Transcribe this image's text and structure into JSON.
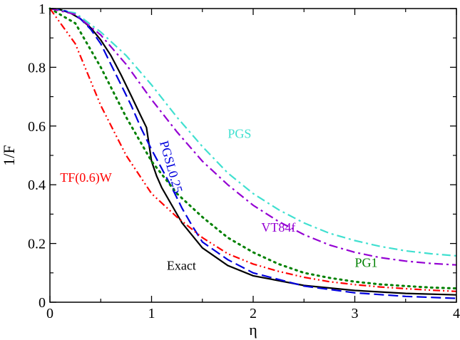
{
  "chart_data": {
    "type": "line",
    "xlabel": "η",
    "ylabel": "1/F",
    "xlim": [
      0,
      4
    ],
    "ylim": [
      0,
      1
    ],
    "x_ticks": [
      "0",
      "1",
      "2",
      "3",
      "4"
    ],
    "y_ticks": [
      "0",
      "0.2",
      "0.4",
      "0.6",
      "0.8",
      "1"
    ],
    "grid": false,
    "legend": "inline labels",
    "series": [
      {
        "name": "Exact",
        "color": "#000000",
        "dash": "solid",
        "x": [
          0,
          0.1,
          0.2,
          0.3,
          0.4,
          0.5,
          0.6,
          0.7,
          0.8,
          0.9,
          0.95,
          1.0,
          1.05,
          1.1,
          1.2,
          1.3,
          1.5,
          1.75,
          2.0,
          2.5,
          3.0,
          3.5,
          4.0
        ],
        "y": [
          1.0,
          0.996,
          0.985,
          0.965,
          0.935,
          0.893,
          0.84,
          0.774,
          0.703,
          0.63,
          0.595,
          0.48,
          0.43,
          0.39,
          0.33,
          0.27,
          0.185,
          0.125,
          0.09,
          0.057,
          0.04,
          0.03,
          0.025
        ]
      },
      {
        "name": "PGSL0.25",
        "color": "#0000dd",
        "dash": "long-dash",
        "x": [
          0,
          0.1,
          0.2,
          0.3,
          0.4,
          0.5,
          0.6,
          0.7,
          0.8,
          0.9,
          1.0,
          1.1,
          1.2,
          1.3,
          1.4,
          1.5,
          1.75,
          2.0,
          2.5,
          3.0,
          3.5,
          4.0
        ],
        "y": [
          1.0,
          0.997,
          0.987,
          0.965,
          0.93,
          0.88,
          0.81,
          0.74,
          0.67,
          0.59,
          0.52,
          0.455,
          0.39,
          0.32,
          0.26,
          0.205,
          0.145,
          0.1,
          0.055,
          0.032,
          0.02,
          0.013
        ]
      },
      {
        "name": "PGS",
        "color": "#40e0d0",
        "dash": "dash-dot",
        "x": [
          0,
          0.25,
          0.5,
          0.75,
          1.0,
          1.25,
          1.5,
          1.75,
          2.0,
          2.25,
          2.5,
          2.75,
          3.0,
          3.25,
          3.5,
          3.75,
          4.0
        ],
        "y": [
          1.0,
          0.985,
          0.92,
          0.84,
          0.74,
          0.63,
          0.53,
          0.44,
          0.37,
          0.315,
          0.27,
          0.235,
          0.21,
          0.19,
          0.175,
          0.165,
          0.158
        ]
      },
      {
        "name": "VT84f",
        "color": "#9400d3",
        "dash": "dash-dot",
        "x": [
          0,
          0.25,
          0.5,
          0.75,
          1.0,
          1.25,
          1.5,
          1.75,
          2.0,
          2.25,
          2.5,
          2.75,
          3.0,
          3.25,
          3.5,
          3.75,
          4.0
        ],
        "y": [
          1.0,
          0.98,
          0.91,
          0.81,
          0.69,
          0.58,
          0.48,
          0.4,
          0.33,
          0.275,
          0.23,
          0.195,
          0.17,
          0.152,
          0.14,
          0.132,
          0.127
        ]
      },
      {
        "name": "PG1",
        "color": "#008000",
        "dash": "dotted",
        "x": [
          0,
          0.25,
          0.5,
          0.75,
          1.0,
          1.25,
          1.5,
          1.75,
          2.0,
          2.25,
          2.5,
          2.75,
          3.0,
          3.25,
          3.5,
          3.75,
          4.0
        ],
        "y": [
          1.0,
          0.95,
          0.8,
          0.63,
          0.48,
          0.37,
          0.29,
          0.22,
          0.17,
          0.13,
          0.1,
          0.083,
          0.07,
          0.061,
          0.055,
          0.05,
          0.047
        ]
      },
      {
        "name": "TF(0.6)W",
        "color": "#ff0000",
        "dash": "dash-dot-dot",
        "x": [
          0,
          0.25,
          0.5,
          0.75,
          1.0,
          1.25,
          1.5,
          1.75,
          2.0,
          2.25,
          2.5,
          2.75,
          3.0,
          3.25,
          3.5,
          3.75,
          4.0
        ],
        "y": [
          1.0,
          0.88,
          0.67,
          0.5,
          0.37,
          0.29,
          0.22,
          0.165,
          0.13,
          0.105,
          0.085,
          0.07,
          0.06,
          0.052,
          0.046,
          0.041,
          0.037
        ]
      }
    ],
    "annotations": [
      {
        "text": "PGS",
        "x": 1.75,
        "y": 0.56,
        "color": "#40e0d0",
        "rotate": 0
      },
      {
        "text": "PGSL0.25",
        "x": 1.08,
        "y": 0.545,
        "color": "#0000dd",
        "rotate": 74
      },
      {
        "text": "TF(0.6)W",
        "x": 0.1,
        "y": 0.41,
        "color": "#ff0000",
        "rotate": 0
      },
      {
        "text": "VT84f",
        "x": 2.08,
        "y": 0.24,
        "color": "#9400d3",
        "rotate": 0
      },
      {
        "text": "PG1",
        "x": 3.0,
        "y": 0.12,
        "color": "#008000",
        "rotate": 0
      },
      {
        "text": "Exact",
        "x": 1.15,
        "y": 0.11,
        "color": "#000000",
        "rotate": 0
      }
    ]
  }
}
